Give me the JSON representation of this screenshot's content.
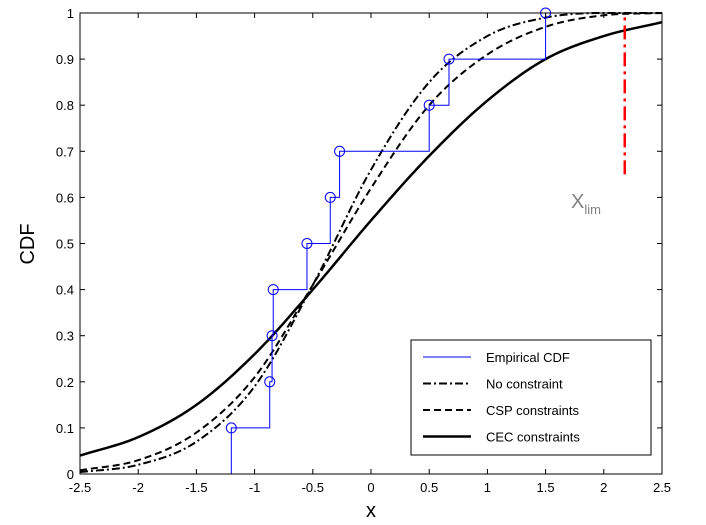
{
  "chart_data": {
    "type": "line",
    "xlabel": "x",
    "ylabel": "CDF",
    "xlim": [
      -2.5,
      2.5
    ],
    "ylim": [
      0,
      1
    ],
    "xticks": [
      "-2.5",
      "-2",
      "-1.5",
      "-1",
      "-0.5",
      "0",
      "0.5",
      "1",
      "1.5",
      "2",
      "2.5"
    ],
    "yticks": [
      "0",
      "0.1",
      "0.2",
      "0.3",
      "0.4",
      "0.5",
      "0.6",
      "0.7",
      "0.8",
      "0.9",
      "1"
    ],
    "grid": false,
    "legend_position": "bottom-right",
    "series": [
      {
        "name": "Empirical CDF",
        "style": "step-markers",
        "color": "#0000ff",
        "x": [
          -1.2,
          -0.87,
          -0.85,
          -0.84,
          -0.55,
          -0.35,
          -0.27,
          0.5,
          0.67,
          1.5
        ],
        "y": [
          0.1,
          0.2,
          0.3,
          0.4,
          0.5,
          0.6,
          0.7,
          0.8,
          0.9,
          1.0
        ]
      },
      {
        "name": "No constraint",
        "style": "dash-dot",
        "color": "#000000",
        "x": [
          -2.5,
          -2.0,
          -1.5,
          -1.0,
          -0.5,
          0.0,
          0.5,
          1.0,
          1.5,
          2.0,
          2.5
        ],
        "y": [
          0.004,
          0.02,
          0.07,
          0.19,
          0.41,
          0.66,
          0.85,
          0.95,
          0.99,
          1.0,
          1.0
        ]
      },
      {
        "name": "CSP constraints",
        "style": "dashed",
        "color": "#000000",
        "x": [
          -2.5,
          -2.0,
          -1.5,
          -1.0,
          -0.5,
          0.0,
          0.5,
          1.0,
          1.5,
          2.0,
          2.5
        ],
        "y": [
          0.008,
          0.03,
          0.09,
          0.21,
          0.41,
          0.62,
          0.8,
          0.91,
          0.97,
          0.995,
          1.0
        ]
      },
      {
        "name": "CEC constraints",
        "style": "solid",
        "color": "#000000",
        "x": [
          -2.5,
          -2.0,
          -1.5,
          -1.0,
          -0.5,
          0.0,
          0.5,
          1.0,
          1.5,
          2.0,
          2.5
        ],
        "y": [
          0.04,
          0.08,
          0.15,
          0.26,
          0.4,
          0.55,
          0.69,
          0.81,
          0.9,
          0.95,
          0.98
        ]
      }
    ],
    "annotations": [
      {
        "text": "X",
        "subscript": "lim",
        "color": "#808080",
        "x": 1.75,
        "y": 0.6
      }
    ],
    "reference_lines": [
      {
        "type": "vertical",
        "x": 2.18,
        "y_from": 0.65,
        "y_to": 1.0,
        "style": "dash-dot",
        "color": "#ff0000"
      }
    ]
  }
}
